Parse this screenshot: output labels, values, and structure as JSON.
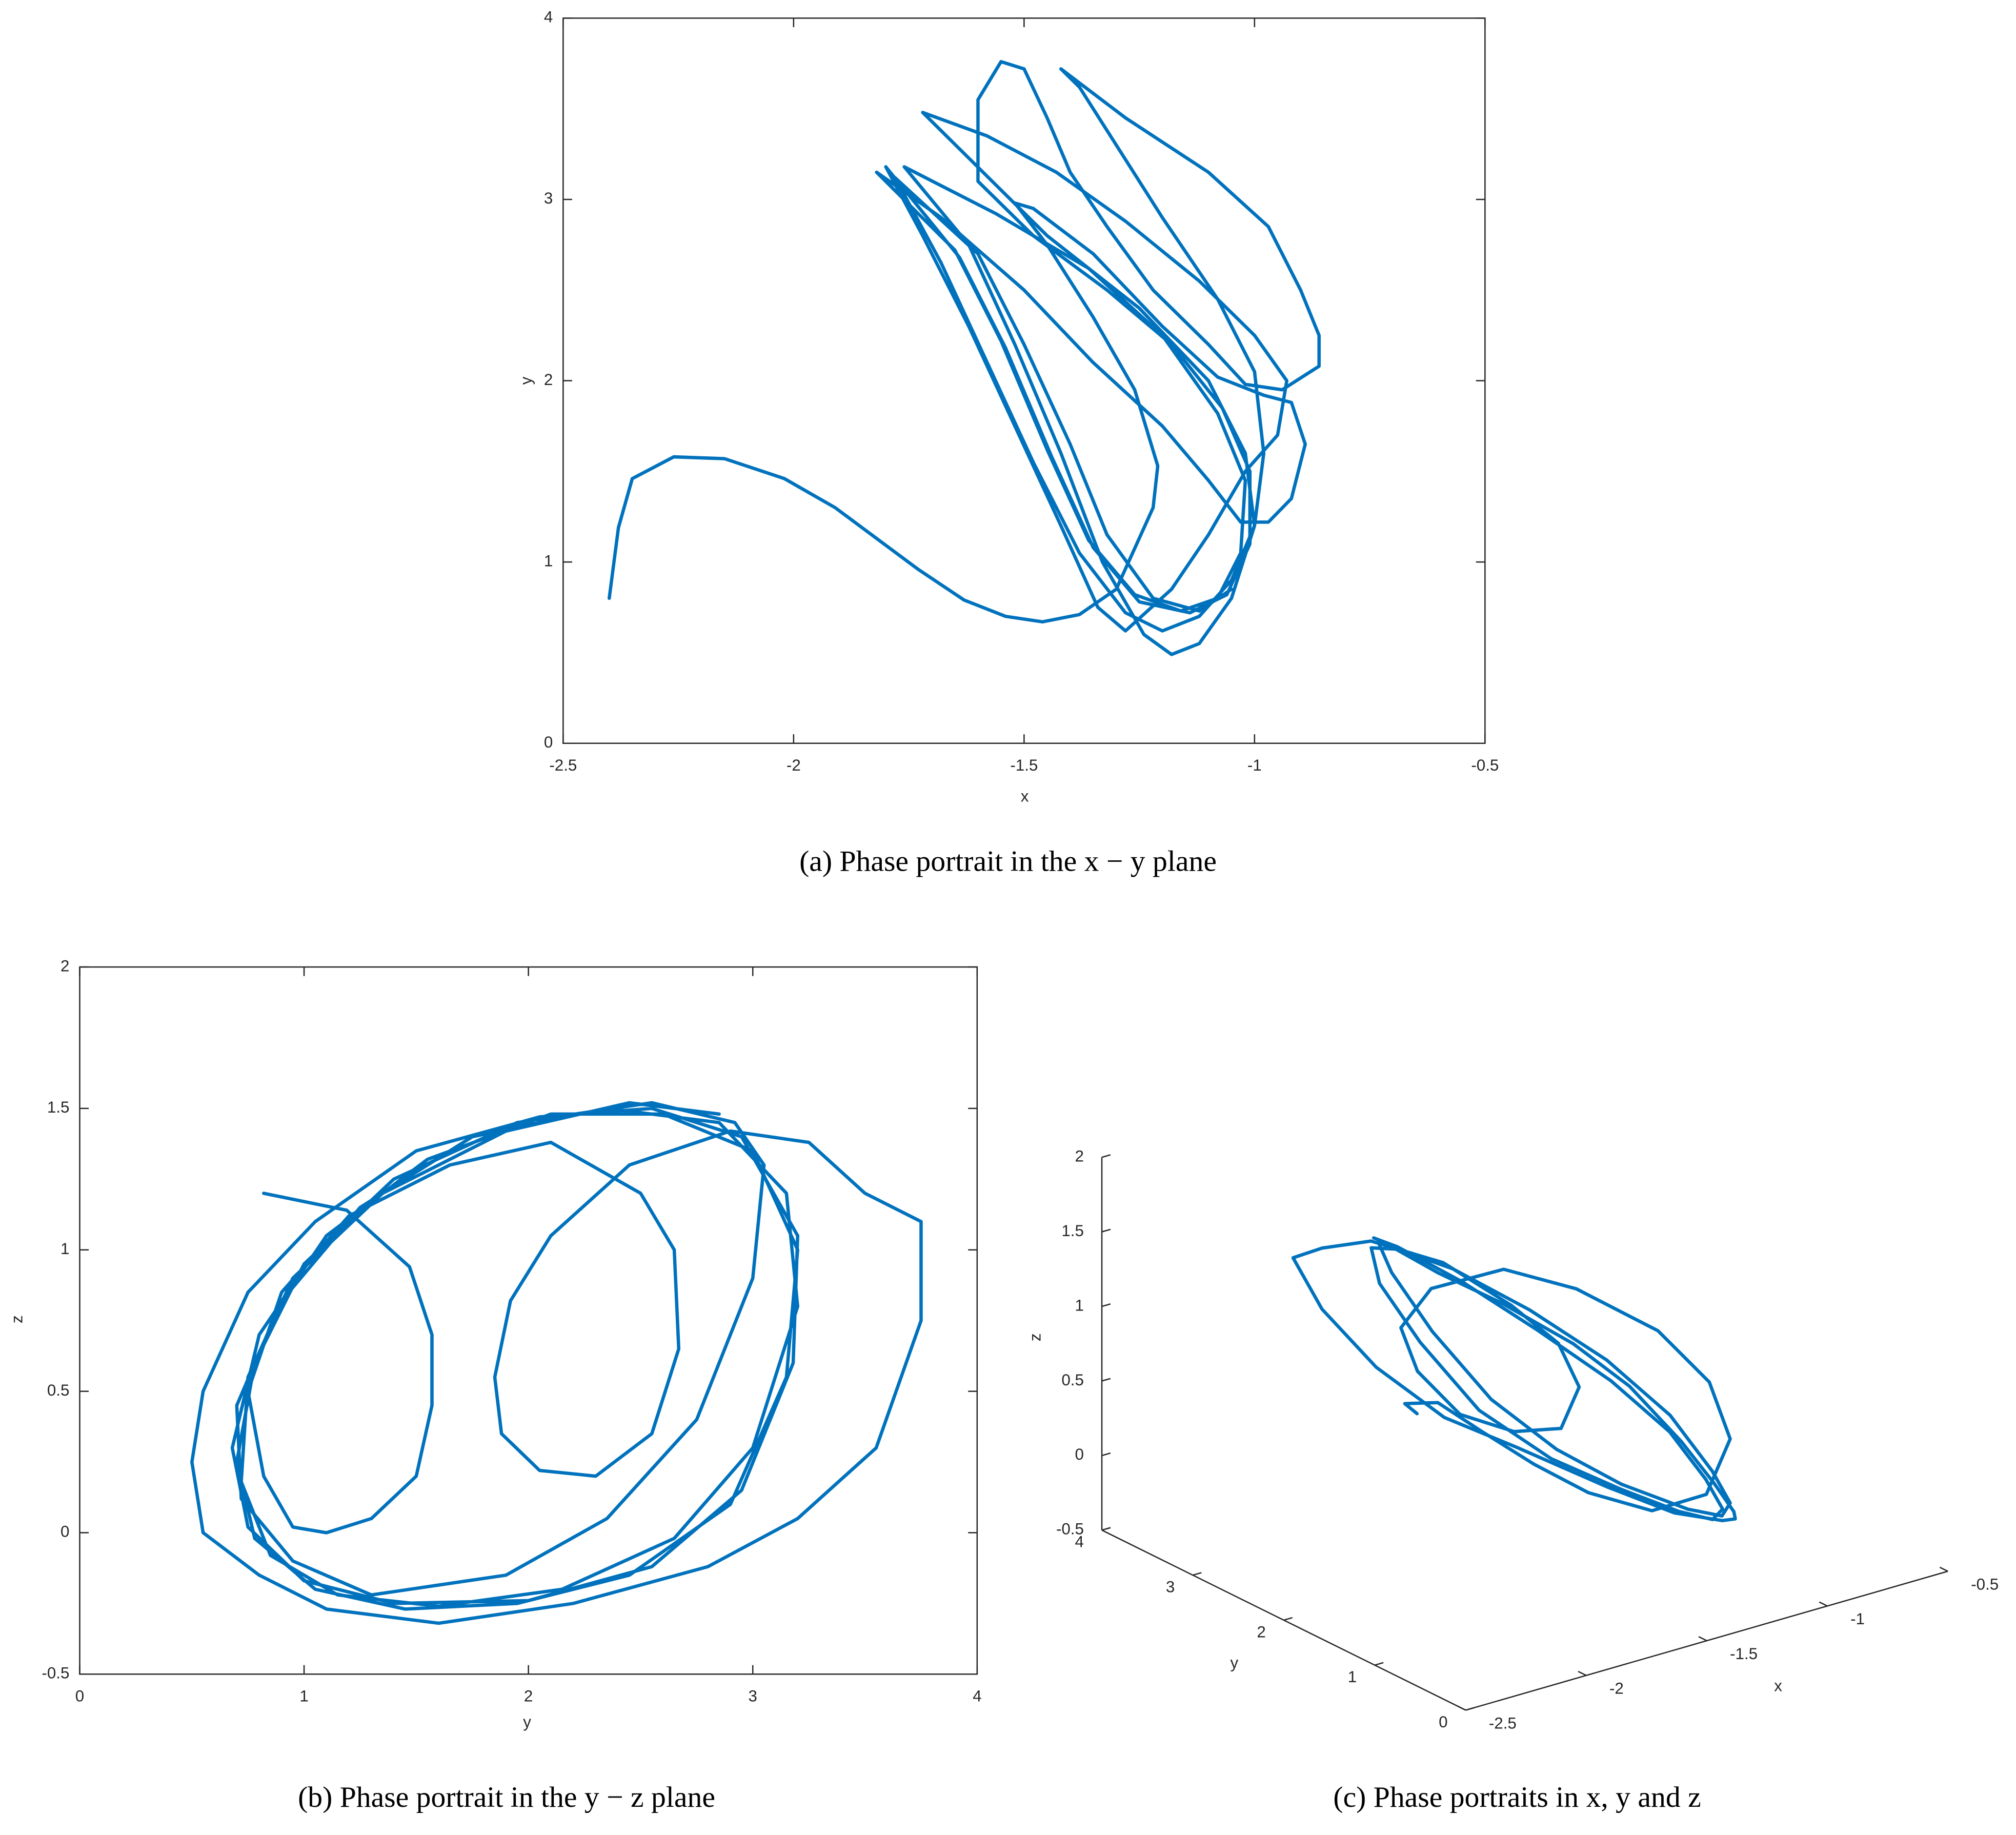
{
  "chart_data": [
    {
      "type": "line",
      "caption": "(a) Phase portrait in the x − y plane",
      "xlabel": "x",
      "ylabel": "y",
      "color": "#0072bd",
      "xlim": [
        -2.5,
        -0.5
      ],
      "xticks": [
        -2.5,
        -2,
        -1.5,
        -1,
        -0.5
      ],
      "ylim": [
        0,
        4
      ],
      "yticks": [
        0,
        1,
        2,
        3,
        4
      ],
      "x": [
        -2.4,
        -2.38,
        -2.35,
        -2.26,
        -2.15,
        -2.02,
        -1.91,
        -1.73,
        -1.63,
        -1.54,
        -1.46,
        -1.38,
        -1.3,
        -1.22,
        -1.21,
        -1.26,
        -1.35,
        -1.45,
        -1.52,
        -1.48,
        -1.35,
        -1.2,
        -1.08,
        -0.98,
        -0.92,
        -0.89,
        -0.92,
        -0.97,
        -1.03,
        -1.1,
        -1.2,
        -1.35,
        -1.5,
        -1.68,
        -1.82,
        -1.65,
        -1.55,
        -1.45,
        -1.36,
        -1.26,
        -1.16,
        -1.08,
        -1.03,
        -1.02,
        -1.08,
        -1.2,
        -1.36,
        -1.56,
        -1.76,
        -1.62,
        -1.52,
        -1.42,
        -1.33,
        -1.24,
        -1.18,
        -1.12,
        -1.05,
        -1.0,
        -1.02,
        -1.1,
        -1.25,
        -1.45,
        -1.72,
        -1.58,
        -1.43,
        -1.28,
        -1.12,
        -1.0,
        -0.93,
        -0.95,
        -1.02,
        -1.1,
        -1.18,
        -1.28,
        -1.34,
        -1.42,
        -1.52,
        -1.62,
        -1.72,
        -1.8,
        -1.64,
        -1.54,
        -1.44,
        -1.35,
        -1.25,
        -1.14,
        -1.06,
        -1.01,
        -1.01,
        -1.07,
        -1.18,
        -1.32,
        -1.48,
        -1.6,
        -1.6,
        -1.55,
        -1.5,
        -1.45,
        -1.4,
        -1.32,
        -1.22,
        -1.1,
        -1.02,
        -0.94,
        -0.86,
        -0.86,
        -0.9,
        -0.97,
        -1.1,
        -1.28,
        -1.42,
        -1.38,
        -1.3,
        -1.2,
        -1.08,
        -1.0,
        -0.98,
        -1.0,
        -1.05,
        -1.12,
        -1.2,
        -1.28,
        -1.38,
        -1.48,
        -1.58,
        -1.68,
        -1.78,
        -1.6,
        -1.5,
        -1.4,
        -1.32,
        -1.22,
        -1.12,
        -1.05
      ],
      "y": [
        0.8,
        1.19,
        1.46,
        1.58,
        1.57,
        1.46,
        1.3,
        0.96,
        0.79,
        0.7,
        0.67,
        0.71,
        0.85,
        1.3,
        1.53,
        1.95,
        2.35,
        2.75,
        2.98,
        2.95,
        2.7,
        2.3,
        2.02,
        1.92,
        1.88,
        1.65,
        1.35,
        1.22,
        1.22,
        1.45,
        1.75,
        2.1,
        2.5,
        2.9,
        3.15,
        2.72,
        2.22,
        1.62,
        1.12,
        0.82,
        0.73,
        0.8,
        1.05,
        1.45,
        1.82,
        2.25,
        2.62,
        2.92,
        3.18,
        2.75,
        2.2,
        1.6,
        1.0,
        0.6,
        0.49,
        0.55,
        0.8,
        1.2,
        1.6,
        2.0,
        2.4,
        2.8,
        3.48,
        3.35,
        3.15,
        2.88,
        2.55,
        2.25,
        2.0,
        1.7,
        1.5,
        1.15,
        0.85,
        0.62,
        0.75,
        1.2,
        1.75,
        2.3,
        2.8,
        3.18,
        2.68,
        2.18,
        1.58,
        1.08,
        0.78,
        0.72,
        0.82,
        1.1,
        1.5,
        1.85,
        2.2,
        2.5,
        2.8,
        3.1,
        3.55,
        3.76,
        3.72,
        3.45,
        3.15,
        2.85,
        2.5,
        2.2,
        1.98,
        1.95,
        2.08,
        2.25,
        2.5,
        2.85,
        3.15,
        3.45,
        3.72,
        3.62,
        3.3,
        2.9,
        2.45,
        2.05,
        1.6,
        1.2,
        0.9,
        0.7,
        0.62,
        0.72,
        1.05,
        1.55,
        2.1,
        2.65,
        3.12,
        2.7,
        2.2,
        1.65,
        1.15,
        0.8,
        0.73,
        0.85
      ]
    },
    {
      "type": "line",
      "caption": "(b) Phase portrait in the y − z plane",
      "xlabel": "y",
      "ylabel": "z",
      "color": "#0072bd",
      "xlim": [
        0,
        4
      ],
      "xticks": [
        0,
        1,
        2,
        3,
        4
      ],
      "ylim": [
        -0.5,
        2
      ],
      "yticks": [
        -0.5,
        0,
        0.5,
        1,
        1.5,
        2
      ],
      "x": [
        0.82,
        1.19,
        1.47,
        1.57,
        1.57,
        1.5,
        1.3,
        1.1,
        0.95,
        0.82,
        0.75,
        0.9,
        1.2,
        1.65,
        2.1,
        2.5,
        2.65,
        2.67,
        2.55,
        2.3,
        2.05,
        1.88,
        1.85,
        1.92,
        2.1,
        2.45,
        2.9,
        3.25,
        3.5,
        3.75,
        3.75,
        3.55,
        3.2,
        2.8,
        2.2,
        1.6,
        1.1,
        0.8,
        0.55,
        0.5,
        0.55,
        0.75,
        1.05,
        1.5,
        2.05,
        2.55,
        2.95,
        3.2,
        3.18,
        2.95,
        2.55,
        2.0,
        1.4,
        1.0,
        0.75,
        0.68,
        0.8,
        1.1,
        1.55,
        2.1,
        2.6,
        3.0,
        3.2,
        3.15,
        2.9,
        2.45,
        1.95,
        1.45,
        1.05,
        0.78,
        0.7,
        0.78,
        1.0,
        1.4,
        1.95,
        2.55,
        2.92,
        3.05,
        3.0,
        2.75,
        2.35,
        1.9,
        1.3,
        0.95,
        0.72,
        0.7,
        0.9,
        1.25,
        1.75,
        2.35,
        2.85,
        3.15,
        3.2,
        3.0,
        2.65,
        2.15,
        1.6,
        1.15,
        0.85,
        0.72,
        0.75,
        0.95,
        1.35,
        1.9,
        2.45,
        2.85
      ],
      "y": [
        1.2,
        1.14,
        0.94,
        0.7,
        0.45,
        0.2,
        0.05,
        0.0,
        0.02,
        0.2,
        0.5,
        0.85,
        1.12,
        1.3,
        1.38,
        1.2,
        1.0,
        0.65,
        0.35,
        0.2,
        0.22,
        0.35,
        0.55,
        0.82,
        1.05,
        1.3,
        1.42,
        1.38,
        1.2,
        1.1,
        0.75,
        0.3,
        0.05,
        -0.12,
        -0.25,
        -0.32,
        -0.27,
        -0.15,
        0.0,
        0.25,
        0.5,
        0.85,
        1.1,
        1.35,
        1.47,
        1.5,
        1.4,
        1.05,
        0.6,
        0.15,
        -0.12,
        -0.24,
        -0.25,
        -0.17,
        0.02,
        0.3,
        0.7,
        1.05,
        1.32,
        1.48,
        1.48,
        1.35,
        1.0,
        0.55,
        0.1,
        -0.15,
        -0.25,
        -0.27,
        -0.2,
        -0.02,
        0.25,
        0.6,
        0.95,
        1.25,
        1.45,
        1.52,
        1.45,
        1.3,
        0.9,
        0.4,
        0.05,
        -0.15,
        -0.22,
        -0.1,
        0.12,
        0.45,
        0.82,
        1.15,
        1.4,
        1.5,
        1.45,
        1.2,
        0.8,
        0.3,
        -0.02,
        -0.2,
        -0.26,
        -0.22,
        -0.08,
        0.18,
        0.55,
        0.9,
        1.2,
        1.42,
        1.52,
        1.48
      ]
    },
    {
      "type": "line3d",
      "caption": "(c) Phase portraits in x, y and z",
      "xlabel": "x",
      "ylabel": "y",
      "zlabel": "z",
      "color": "#0072bd",
      "xlim": [
        -2.5,
        -0.5
      ],
      "xticks": [
        -2.5,
        -2,
        -1.5,
        -1,
        -0.5
      ],
      "ylim": [
        0,
        4
      ],
      "yticks": [
        0,
        1,
        2,
        3,
        4
      ],
      "zlim": [
        -0.5,
        2
      ],
      "zticks": [
        -0.5,
        0,
        0.5,
        1,
        1.5,
        2
      ],
      "x": [
        -2.4,
        -2.3,
        -2.05,
        -1.85,
        -1.65,
        -1.5,
        -1.35,
        -1.2,
        -1.12,
        -1.15,
        -1.25,
        -1.4,
        -1.55,
        -1.7,
        -1.75,
        -1.7,
        -1.58,
        -1.45,
        -1.35,
        -1.32,
        -1.38,
        -1.5,
        -1.65,
        -1.78,
        -1.85,
        -1.82,
        -1.7,
        -1.55,
        -1.4,
        -1.25,
        -1.12,
        -1.05,
        -1.02,
        -1.08,
        -1.18,
        -1.28,
        -1.38,
        -1.5,
        -1.62,
        -1.75,
        -1.82,
        -1.82,
        -1.75,
        -1.6,
        -1.45,
        -1.3,
        -1.18,
        -1.1,
        -1.05,
        -1.06,
        -1.12,
        -1.22,
        -1.35,
        -1.5,
        -1.65,
        -1.76,
        -1.8,
        -1.76,
        -1.65,
        -1.5,
        -1.35,
        -1.22,
        -1.12,
        -1.07,
        -1.08,
        -1.14,
        -1.24,
        -1.36,
        -1.52,
        -1.68,
        -1.78,
        -1.82,
        -1.78
      ],
      "y": [
        0.8,
        1.2,
        1.5,
        1.55,
        1.5,
        1.3,
        1.0,
        0.8,
        0.75,
        0.9,
        1.2,
        1.7,
        2.1,
        2.5,
        2.7,
        2.65,
        2.5,
        2.25,
        2.0,
        1.88,
        1.95,
        2.15,
        2.5,
        2.95,
        3.3,
        3.7,
        3.7,
        3.5,
        3.15,
        2.75,
        2.1,
        1.55,
        1.1,
        0.8,
        0.55,
        0.5,
        0.6,
        0.85,
        1.15,
        1.6,
        2.1,
        2.6,
        2.95,
        3.2,
        3.15,
        2.9,
        2.5,
        2.0,
        1.4,
        1.0,
        0.75,
        0.68,
        0.8,
        1.1,
        1.55,
        2.1,
        2.6,
        3.0,
        3.2,
        3.15,
        2.9,
        2.45,
        1.95,
        1.45,
        1.05,
        0.78,
        0.7,
        0.78,
        1.0,
        1.4,
        1.95,
        2.55,
        2.92
      ],
      "z": [
        1.2,
        1.1,
        0.9,
        0.6,
        0.3,
        0.1,
        0.0,
        0.1,
        0.45,
        0.8,
        1.1,
        1.3,
        1.38,
        1.2,
        0.9,
        0.6,
        0.3,
        0.2,
        0.25,
        0.55,
        0.85,
        1.1,
        1.35,
        1.42,
        1.3,
        1.1,
        0.7,
        0.3,
        0.0,
        -0.15,
        -0.28,
        -0.32,
        -0.25,
        -0.12,
        0.05,
        0.3,
        0.6,
        0.95,
        1.2,
        1.4,
        1.48,
        1.5,
        1.4,
        1.05,
        0.6,
        0.15,
        -0.12,
        -0.24,
        -0.25,
        -0.17,
        0.02,
        0.3,
        0.7,
        1.05,
        1.32,
        1.48,
        1.48,
        1.35,
        1.0,
        0.55,
        0.1,
        -0.15,
        -0.25,
        -0.27,
        -0.2,
        -0.02,
        0.25,
        0.6,
        0.95,
        1.25,
        1.45,
        1.52,
        1.45
      ]
    }
  ]
}
